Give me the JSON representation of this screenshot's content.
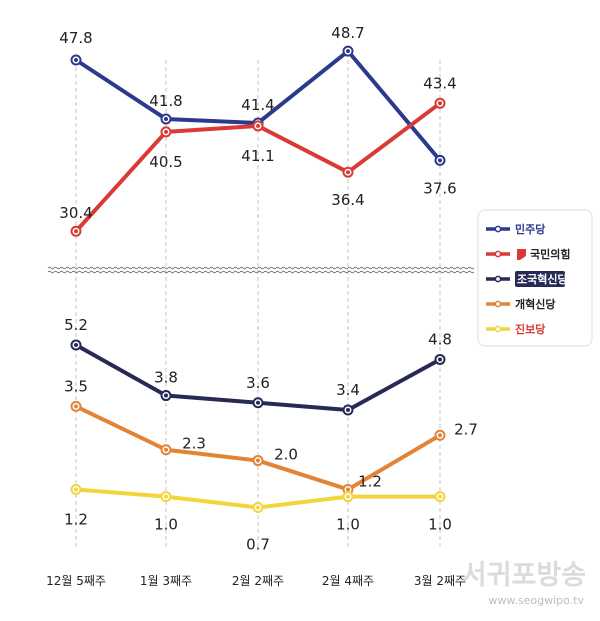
{
  "chart_data": {
    "type": "line",
    "categories": [
      "12월 5째주",
      "1월 3째주",
      "2월 2째주",
      "2월 4째주",
      "3월 2째주"
    ],
    "upper": {
      "series": [
        {
          "name": "민주당",
          "color": "#2b3a8c",
          "values": [
            47.8,
            41.8,
            41.4,
            48.7,
            37.6
          ],
          "labels": [
            "47.8",
            "41.8",
            "41.4",
            "48.7",
            "37.6"
          ]
        },
        {
          "name": "국민의힘",
          "color": "#d93a35",
          "values": [
            30.4,
            40.5,
            41.1,
            36.4,
            43.4
          ],
          "labels": [
            "30.4",
            "40.5",
            "41.1",
            "36.4",
            "43.4"
          ]
        }
      ]
    },
    "lower": {
      "series": [
        {
          "name": "조국혁신당",
          "color": "#262a55",
          "values": [
            5.2,
            3.8,
            3.6,
            3.4,
            4.8
          ],
          "labels": [
            "5.2",
            "3.8",
            "3.6",
            "3.4",
            "4.8"
          ]
        },
        {
          "name": "개혁신당",
          "color": "#e38336",
          "values": [
            3.5,
            2.3,
            2.0,
            1.2,
            2.7
          ],
          "labels": [
            "3.5",
            "2.3",
            "2.0",
            "1.2",
            "2.7"
          ]
        },
        {
          "name": "진보당",
          "color": "#f2d43c",
          "values": [
            1.2,
            1.0,
            0.7,
            1.0,
            1.0
          ],
          "labels": [
            "1.2",
            "1.0",
            "0.7",
            "1.0",
            "1.0"
          ]
        }
      ]
    },
    "legend_position": "right",
    "grid": "vertical dashed lines at each category"
  },
  "legend": [
    {
      "label": "민주당",
      "color": "#2b3a8c",
      "text_color": "#2b3a8c"
    },
    {
      "label": "국민의힘",
      "color": "#d93a35",
      "text_color": "#222222"
    },
    {
      "label": "조국혁신당",
      "color": "#262a55",
      "text_color": "#ffffff"
    },
    {
      "label": "개혁신당",
      "color": "#e38336",
      "text_color": "#222222"
    },
    {
      "label": "진보당",
      "color": "#f2d43c",
      "text_color": "#d93a35"
    }
  ],
  "watermark": {
    "title": "서귀포방송",
    "url": "www.seogwipo.tv"
  }
}
